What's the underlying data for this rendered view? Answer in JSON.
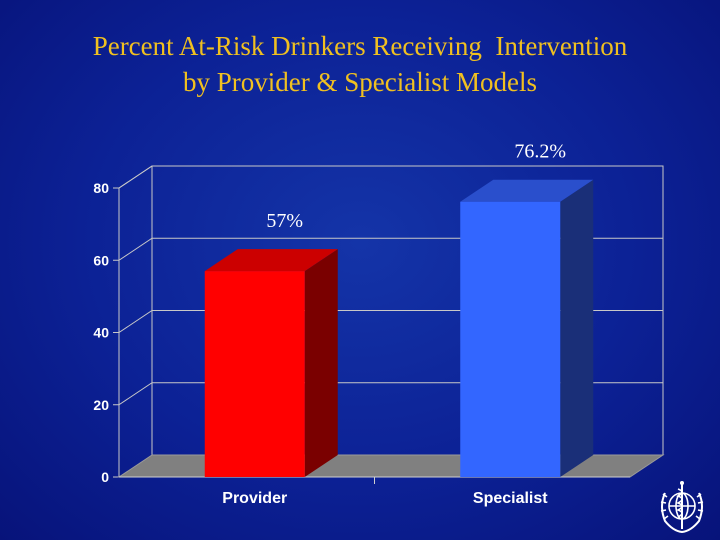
{
  "title": {
    "line1": "Percent At-Risk Drinkers Receiving  Intervention",
    "line2": "by Provider & Specialist Models"
  },
  "chart_data": {
    "type": "bar",
    "categories": [
      "Provider",
      "Specialist"
    ],
    "values": [
      57,
      76.2
    ],
    "data_labels": [
      "57%",
      "76.2%"
    ],
    "y_ticks": [
      "0",
      "20",
      "40",
      "60",
      "80"
    ],
    "ylim": [
      0,
      80
    ],
    "grid": true,
    "style": "3d",
    "colors": {
      "provider_front": "#ff0000",
      "provider_top": "#cc0000",
      "provider_side": "#7a0000",
      "specialist_front": "#3366ff",
      "specialist_top": "#2a4fcc",
      "specialist_side": "#1a2f78"
    }
  },
  "logo": {
    "icon": "who-emblem-icon"
  },
  "colors": {
    "background": "#0c2195",
    "title": "#f0c020",
    "axis_text": "#ffffff",
    "grid": "#c8c8c8",
    "floor": "#808080"
  }
}
